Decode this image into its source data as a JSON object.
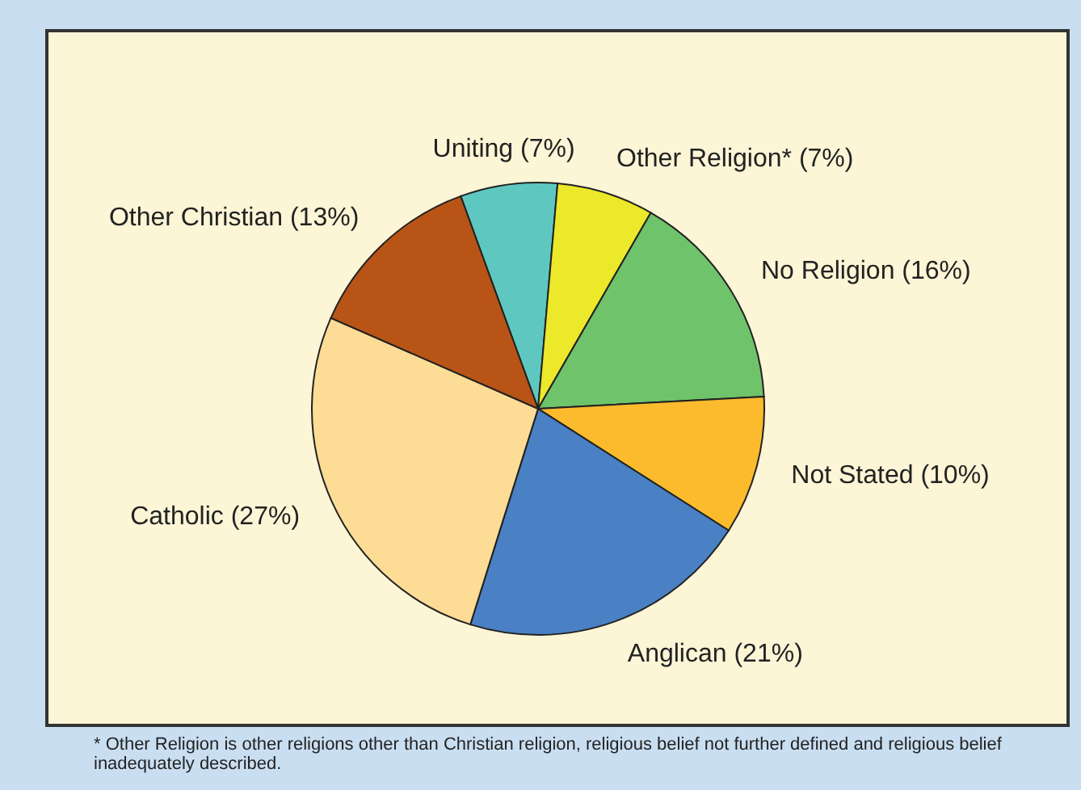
{
  "chart_data": {
    "type": "pie",
    "categories": [
      "Uniting (7%)",
      "Other Religion* (7%)",
      "No Religion (16%)",
      "Not Stated (10%)",
      "Anglican (21%)",
      "Catholic (27%)",
      "Other Christian (13%)"
    ],
    "values": [
      7,
      7,
      16,
      10,
      21,
      27,
      13
    ],
    "colors": [
      "#5ec8c0",
      "#ece82a",
      "#6fc36a",
      "#fbbb2d",
      "#4a80c4",
      "#fddc95",
      "#b95417"
    ],
    "annotations": [
      "*  Other Religion is other religions other than Christian religion, religious belief not further defined and religious belief inadequately described."
    ]
  }
}
